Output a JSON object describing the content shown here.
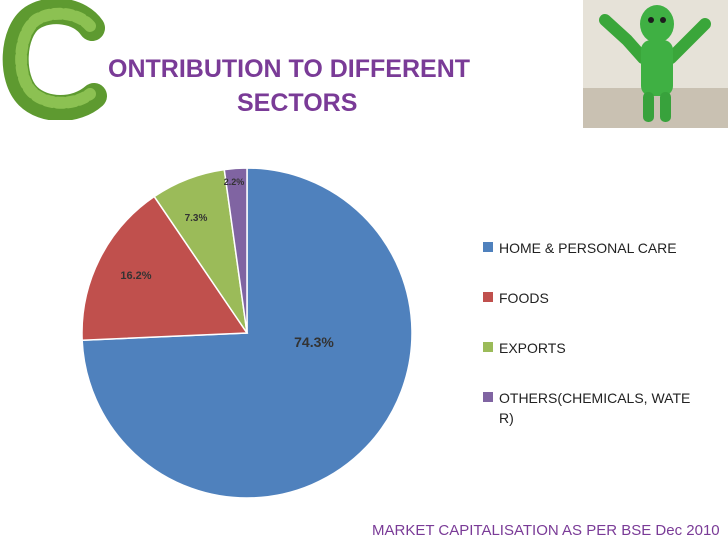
{
  "header": {
    "title_line1": "ONTRIBUTION TO DIFFERENT",
    "title_line2": "SECTORS",
    "decor_letter": "C"
  },
  "footer": {
    "text": "MARKET CAPITALISATION AS PER BSE Dec 2010"
  },
  "colors": {
    "title": "#7a3b97",
    "leaf_green": "#6aa33a",
    "home_personal_care": "#4f81bd",
    "foods": "#c0504d",
    "exports": "#9bbb59",
    "others": "#8064a2"
  },
  "chart_data": {
    "type": "pie",
    "title": "",
    "slices": [
      {
        "name": "HOME & PERSONAL CARE",
        "value": 74.3,
        "label": "74.3%",
        "color": "#4f81bd"
      },
      {
        "name": "FOODS",
        "value": 16.2,
        "label": "16.2%",
        "color": "#c0504d"
      },
      {
        "name": "EXPORTS",
        "value": 7.3,
        "label": "7.3%",
        "color": "#9bbb59"
      },
      {
        "name": "OTHERS(CHEMICALS, WATER)",
        "value": 2.2,
        "label": "2.2%",
        "color": "#8064a2"
      }
    ],
    "legend": {
      "position": "right",
      "entries": [
        {
          "line1": "HOME & PERSONAL CARE",
          "line2": ""
        },
        {
          "line1": "FOODS",
          "line2": ""
        },
        {
          "line1": "EXPORTS",
          "line2": ""
        },
        {
          "line1": "OTHERS(CHEMICALS, WATE",
          "line2": "R)"
        }
      ]
    }
  }
}
